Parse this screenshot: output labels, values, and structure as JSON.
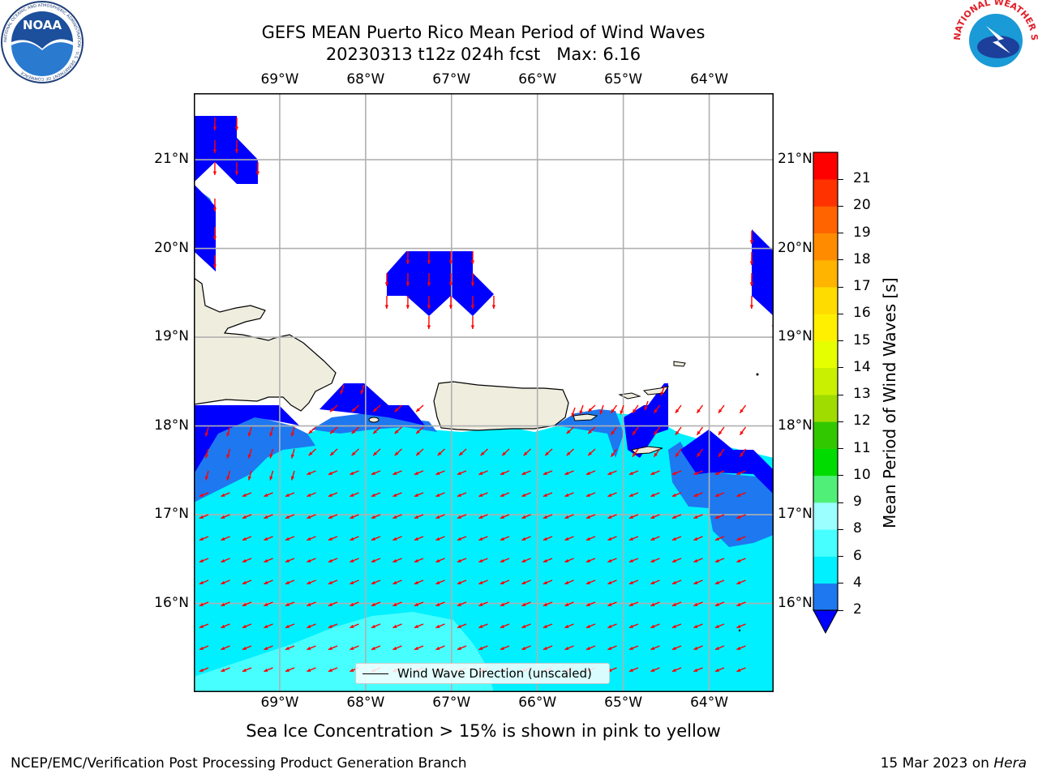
{
  "title": {
    "line1": "GEFS MEAN Puerto Rico Mean Period of Wind Waves",
    "line2": "20230313 t12z 024h fcst   Max: 6.16"
  },
  "logos": {
    "left": {
      "name": "noaa-logo",
      "text": "NOAA",
      "ring_text": "NATIONAL OCEANIC AND ATMOSPHERIC ADMINISTRATION · U.S. DEPARTMENT OF COMMERCE"
    },
    "right": {
      "name": "nws-logo",
      "ring_text": "NATIONAL WEATHER SERVICE"
    }
  },
  "map": {
    "lon_labels": [
      "69°W",
      "68°W",
      "67°W",
      "66°W",
      "65°W",
      "64°W"
    ],
    "lat_labels": [
      "21°N",
      "20°N",
      "19°N",
      "18°N",
      "17°N",
      "16°N"
    ],
    "lon_range": [
      -70.0,
      -63.25
    ],
    "lat_range": [
      15.0,
      21.75
    ],
    "colors": {
      "land": "#efedde",
      "band_2_4": "#1e78f0",
      "band_4_6": "#00f0ff",
      "band_6_8": "#48ffff",
      "below_2": "#0000ff",
      "arrow": "#ff0000",
      "grid": "#b0b0b0"
    }
  },
  "legend": {
    "label": "Wind Wave Direction (unscaled)"
  },
  "colorbar": {
    "title": "Mean Period of Wind Waves [s]",
    "ticks": [
      2,
      4,
      6,
      8,
      9,
      10,
      11,
      12,
      13,
      14,
      15,
      16,
      17,
      18,
      19,
      20,
      21
    ],
    "colors": [
      "#1e78f0",
      "#00f0ff",
      "#48ffff",
      "#9bffff",
      "#50f078",
      "#00dc00",
      "#32c800",
      "#a0dc00",
      "#c8f000",
      "#e6ff00",
      "#fff000",
      "#ffdc00",
      "#ffb400",
      "#ff8c00",
      "#ff6400",
      "#ff3200",
      "#ff0000"
    ],
    "under_color": "#0000ff"
  },
  "note": "Sea Ice Concentration > 15% is shown in pink to yellow",
  "footer": {
    "left": "NCEP/EMC/Verification Post Processing Product Generation Branch",
    "right_prefix": "15 Mar 2023 on ",
    "right_machine": "Hera"
  }
}
